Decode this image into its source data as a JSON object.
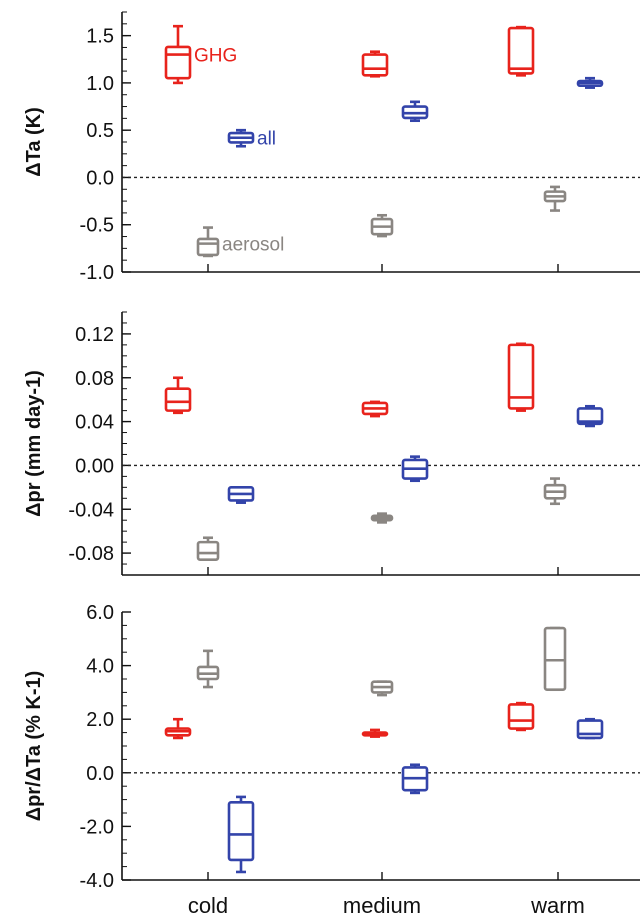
{
  "chart_data": [
    {
      "type": "box",
      "ylabel": "ΔTa (K)",
      "ylim": [
        -1.0,
        1.75
      ],
      "yticks": [
        "1.5",
        "1.0",
        "0.5",
        "0.0",
        "-0.5",
        "-1.0"
      ],
      "tick_values": [
        1.5,
        1.0,
        0.5,
        0.0,
        -0.5,
        -1.0
      ],
      "zero_line": true,
      "categories": [
        "cold",
        "medium",
        "warm"
      ],
      "series": [
        {
          "name": "GHG",
          "color": "#e8231c",
          "boxes": [
            [
              1.0,
              1.05,
              1.3,
              1.38,
              1.6
            ],
            [
              1.07,
              1.08,
              1.15,
              1.3,
              1.33
            ],
            [
              1.08,
              1.1,
              1.15,
              1.58,
              1.59
            ]
          ]
        },
        {
          "name": "all",
          "color": "#3344aa",
          "boxes": [
            [
              0.33,
              0.37,
              0.42,
              0.47,
              0.5
            ],
            [
              0.6,
              0.63,
              0.68,
              0.75,
              0.8
            ],
            [
              0.95,
              0.97,
              1.0,
              1.02,
              1.05
            ]
          ]
        },
        {
          "name": "aerosol",
          "color": "#8a8682",
          "boxes": [
            [
              -0.83,
              -0.82,
              -0.7,
              -0.65,
              -0.53
            ],
            [
              -0.62,
              -0.6,
              -0.52,
              -0.44,
              -0.4
            ],
            [
              -0.35,
              -0.25,
              -0.2,
              -0.15,
              -0.1
            ]
          ]
        }
      ],
      "annotations": [
        {
          "text": "GHG",
          "series": 0
        },
        {
          "text": "all",
          "series": 1
        },
        {
          "text": "aerosol",
          "series": 2
        }
      ]
    },
    {
      "type": "box",
      "ylabel": "Δpr (mm day-1)",
      "ylim": [
        -0.1,
        0.14
      ],
      "yticks": [
        "0.12",
        "0.08",
        "0.04",
        "0.00",
        "-0.04",
        "-0.08"
      ],
      "tick_values": [
        0.12,
        0.08,
        0.04,
        0.0,
        -0.04,
        -0.08
      ],
      "zero_line": true,
      "categories": [
        "cold",
        "medium",
        "warm"
      ],
      "series": [
        {
          "name": "GHG",
          "color": "#e8231c",
          "boxes": [
            [
              0.048,
              0.05,
              0.058,
              0.07,
              0.08
            ],
            [
              0.045,
              0.047,
              0.052,
              0.057,
              0.058
            ],
            [
              0.05,
              0.052,
              0.062,
              0.11,
              0.111
            ]
          ]
        },
        {
          "name": "all",
          "color": "#3344aa",
          "boxes": [
            [
              -0.034,
              -0.032,
              -0.026,
              -0.02,
              -0.02
            ],
            [
              -0.014,
              -0.012,
              -0.003,
              0.005,
              0.008
            ],
            [
              0.036,
              0.038,
              0.04,
              0.052,
              0.054
            ]
          ]
        },
        {
          "name": "aerosol",
          "color": "#8a8682",
          "boxes": [
            [
              -0.086,
              -0.086,
              -0.08,
              -0.07,
              -0.066
            ],
            [
              -0.052,
              -0.05,
              -0.048,
              -0.046,
              -0.044
            ],
            [
              -0.035,
              -0.03,
              -0.024,
              -0.018,
              -0.012
            ]
          ]
        }
      ]
    },
    {
      "type": "box",
      "ylabel": "Δpr/ΔTa (% K-1)",
      "ylim": [
        -4.0,
        6.0
      ],
      "yticks": [
        "6.0",
        "4.0",
        "2.0",
        "0.0",
        "-2.0",
        "-4.0"
      ],
      "tick_values": [
        6.0,
        4.0,
        2.0,
        0.0,
        -2.0,
        -4.0
      ],
      "zero_line": true,
      "categories": [
        "cold",
        "medium",
        "warm"
      ],
      "xticks": [
        "cold",
        "medium",
        "warm"
      ],
      "series": [
        {
          "name": "GHG",
          "color": "#e8231c",
          "boxes": [
            [
              1.3,
              1.4,
              1.55,
              1.65,
              2.0
            ],
            [
              1.35,
              1.4,
              1.45,
              1.5,
              1.6
            ],
            [
              1.6,
              1.65,
              1.95,
              2.55,
              2.6
            ]
          ]
        },
        {
          "name": "all",
          "color": "#3344aa",
          "boxes": [
            [
              -3.7,
              -3.25,
              -2.3,
              -1.1,
              -0.9
            ],
            [
              -0.75,
              -0.65,
              -0.2,
              0.2,
              0.3
            ],
            [
              1.3,
              1.3,
              1.45,
              1.95,
              2.0
            ]
          ]
        },
        {
          "name": "aerosol",
          "color": "#8a8682",
          "boxes": [
            [
              3.2,
              3.5,
              3.7,
              3.95,
              4.55
            ],
            [
              2.9,
              3.0,
              3.2,
              3.4,
              3.4
            ],
            [
              3.1,
              3.1,
              4.2,
              5.4,
              5.4
            ]
          ]
        }
      ]
    }
  ]
}
